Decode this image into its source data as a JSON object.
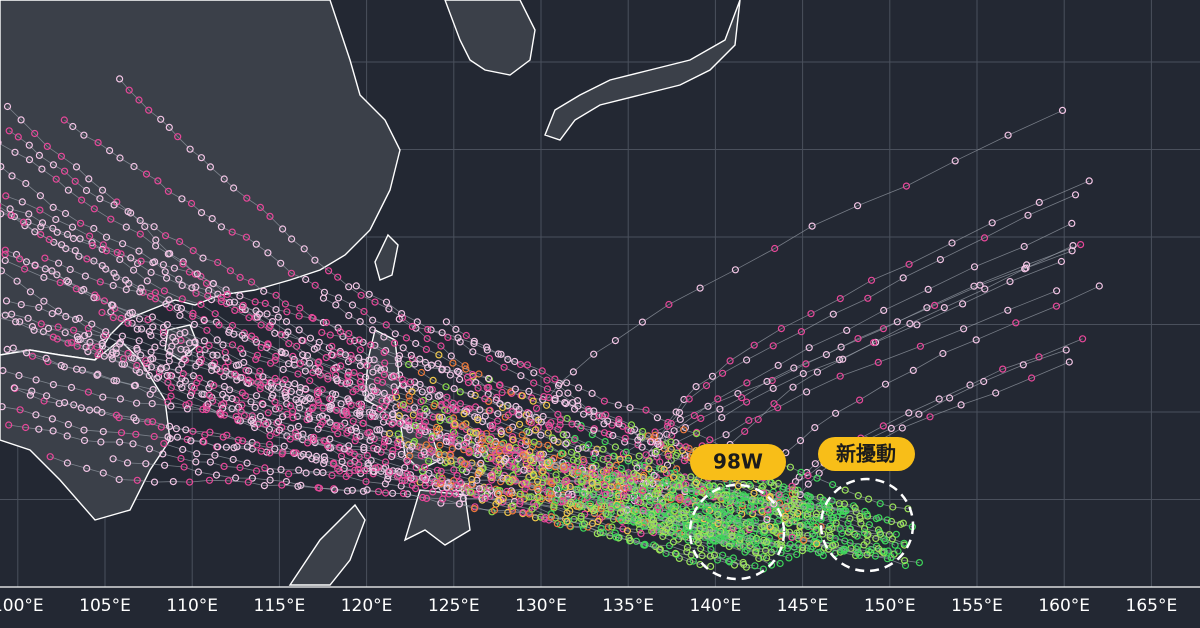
{
  "map": {
    "longitude_labels": [
      "100°E",
      "105°E",
      "110°E",
      "115°E",
      "120°E",
      "125°E",
      "130°E",
      "135°E",
      "140°E",
      "145°E",
      "150°E",
      "155°E",
      "160°E",
      "165°E"
    ],
    "annotations": [
      {
        "label": "98W"
      },
      {
        "label": "新擾動"
      }
    ]
  }
}
